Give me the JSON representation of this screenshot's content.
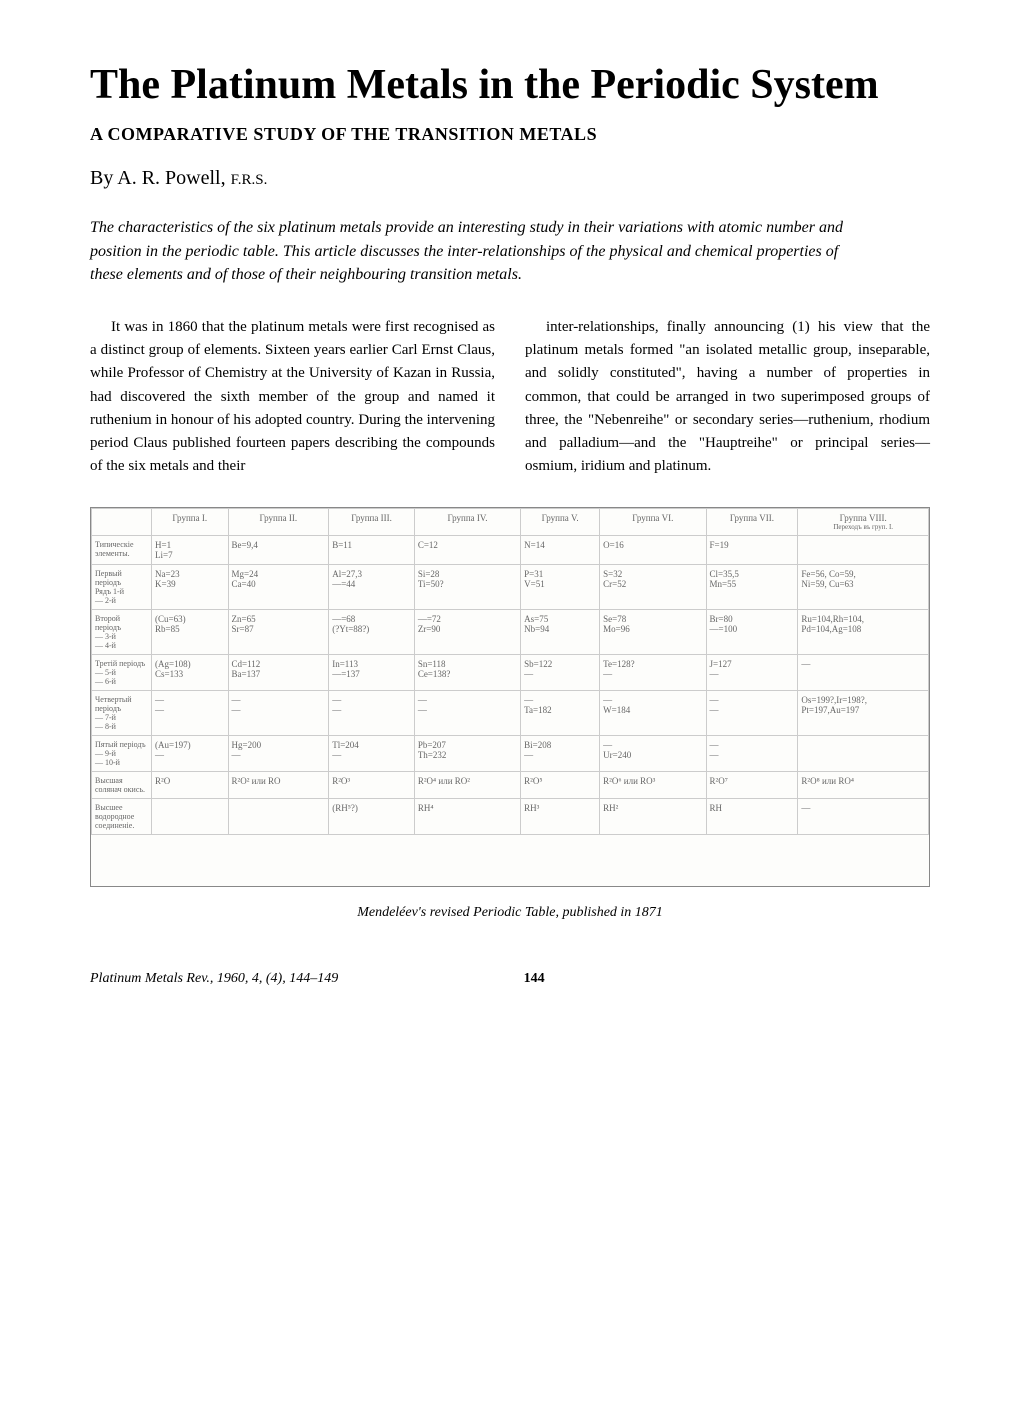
{
  "title": "The Platinum Metals in the Periodic System",
  "subtitle": "A COMPARATIVE STUDY OF THE TRANSITION METALS",
  "byline_prefix": "By ",
  "author": "A. R. Powell, ",
  "credentials": "F.R.S.",
  "abstract": "The characteristics of the six platinum metals provide an interesting study in their variations with atomic number and position in the periodic table. This article discusses the inter-relationships of the physical and chemical properties of these elements and of those of their neighbouring transition metals.",
  "col1": "It was in 1860 that the platinum metals were first recognised as a distinct group of elements. Sixteen years earlier Carl Ernst Claus, while Professor of Chemistry at the University of Kazan in Russia, had discovered the sixth member of the group and named it ruthenium in honour of his adopted country. During the intervening period Claus published fourteen papers describing the compounds of the six metals and their",
  "col2": "inter-relationships, finally announcing (1) his view that the platinum metals formed \"an isolated metallic group, inseparable, and solidly constituted\", having a number of properties in common, that could be arranged in two superimposed groups of three, the \"Nebenreihe\" or secondary series—ruthenium, rhodium and palladium—and the \"Hauptreihe\" or principal series—osmium, iridium and platinum.",
  "periodic_table": {
    "headers": [
      "",
      "Группа I.",
      "Группа II.",
      "Группа III.",
      "Группа IV.",
      "Группа V.",
      "Группа VI.",
      "Группа VII.",
      "Группа VIII."
    ],
    "header_note": "Переходъ въ груп. I.",
    "rows": [
      {
        "label": "Типическіе элементы.",
        "cells": [
          "H=1\nLi=7",
          "Be=9,4",
          "B=11",
          "C=12",
          "N=14",
          "O=16",
          "F=19",
          ""
        ]
      },
      {
        "label": "Первый періодъ",
        "sub": "Рядъ 1-й\n— 2-й",
        "cells": [
          "Na=23\nK=39",
          "Mg=24\nCa=40",
          "Al=27,3\n—=44",
          "Si=28\nTi=50?",
          "P=31\nV=51",
          "S=32\nCr=52",
          "Cl=35,5\nMn=55",
          "Fe=56, Co=59,\nNi=59, Cu=63"
        ]
      },
      {
        "label": "Второй періодъ",
        "sub": "— 3-й\n— 4-й",
        "cells": [
          "(Cu=63)\nRb=85",
          "Zn=65\nSr=87",
          "—=68\n(?Yt=88?)",
          "—=72\nZr=90",
          "As=75\nNb=94",
          "Se=78\nMo=96",
          "Br=80\n—=100",
          "Ru=104,Rh=104,\nPd=104,Ag=108"
        ]
      },
      {
        "label": "Третій періодъ",
        "sub": "— 5-й\n— 6-й",
        "cells": [
          "(Ag=108)\nCs=133",
          "Cd=112\nBa=137",
          "In=113\n—=137",
          "Sn=118\nCe=138?",
          "Sb=122\n—",
          "Te=128?\n—",
          "J=127\n—",
          "—"
        ]
      },
      {
        "label": "Четвертый періодъ",
        "sub": "— 7-й\n— 8-й",
        "cells": [
          "—\n—",
          "—\n—",
          "—\n—",
          "—\n—",
          "—\nTa=182",
          "—\nW=184",
          "—\n—",
          "Os=199?,Ir=198?,\nPt=197,Au=197"
        ]
      },
      {
        "label": "Пятый періодъ",
        "sub": "— 9-й\n— 10-й",
        "cells": [
          "(Au=197)\n—",
          "Hg=200\n—",
          "Tl=204\n—",
          "Pb=207\nTh=232",
          "Bi=208\n—",
          "—\nUr=240",
          "—\n—",
          ""
        ]
      },
      {
        "label": "Высшая солянач окись.",
        "cells": [
          "R²O",
          "R²O² или RO",
          "R²O³",
          "R²O⁴ или RO²",
          "R²O⁵",
          "R²O⁶ или RO³",
          "R²O⁷",
          "R²O⁸ или RO⁴"
        ]
      },
      {
        "label": "Высшее водородное соединеніе.",
        "cells": [
          "",
          "",
          "(RH⁵?)",
          "RH⁴",
          "RH³",
          "RH²",
          "RH",
          "—"
        ]
      }
    ]
  },
  "caption": "Mendeléev's revised Periodic Table, published in 1871",
  "footer_left": "Platinum Metals Rev., 1960, 4, (4), 144–149",
  "page_number": "144",
  "colors": {
    "text": "#000000",
    "background": "#ffffff",
    "border": "#888888",
    "table_text": "#666666",
    "table_border": "#cccccc"
  }
}
